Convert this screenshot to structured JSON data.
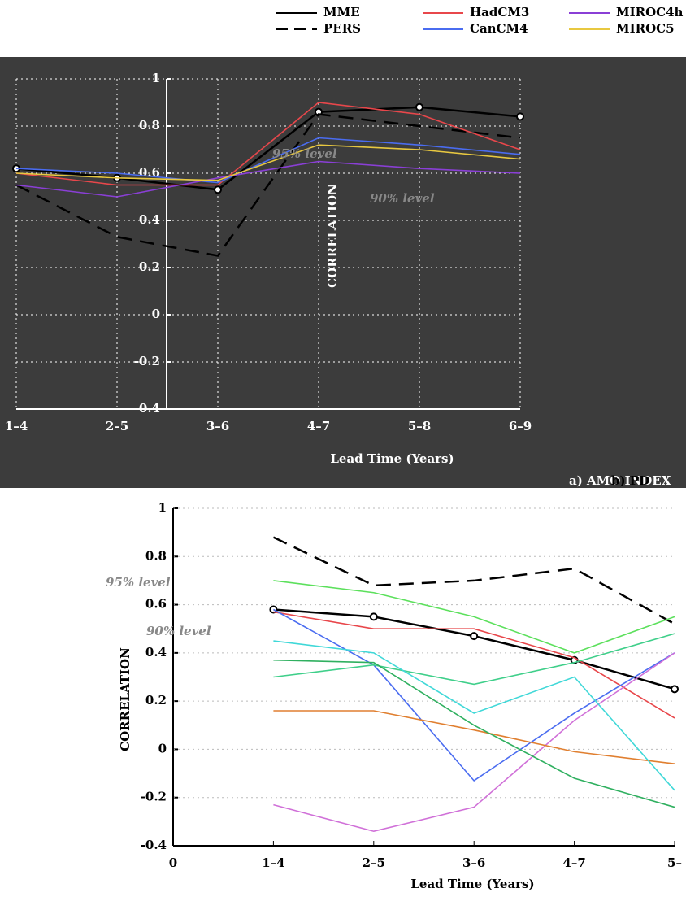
{
  "chart_data": [
    {
      "type": "line",
      "title": "a) AMO INDEX",
      "x_label": "Lead Time (Years)",
      "y_label": "CORRELATION",
      "annotations": [
        "95% level",
        "90% level"
      ],
      "categories": [
        "1–4",
        "2–5",
        "3–6",
        "4–7",
        "5–8",
        "6–9"
      ],
      "ylim": [
        -0.4,
        1
      ],
      "yticks": [
        -0.4,
        -0.2,
        0,
        0.2,
        0.4,
        0.6,
        0.8,
        1
      ],
      "grid": true,
      "series": [
        {
          "name": "MME",
          "color": "#000000",
          "markers": true,
          "values": [
            0.62,
            0.58,
            0.53,
            0.86,
            0.88,
            0.84
          ]
        },
        {
          "name": "PERS",
          "color": "#000000",
          "dash": true,
          "values": [
            0.55,
            0.33,
            0.25,
            0.85,
            0.8,
            0.75
          ]
        },
        {
          "name": "HadCM3",
          "color": "#e8474b",
          "values": [
            0.6,
            0.55,
            0.55,
            0.9,
            0.85,
            0.7
          ]
        },
        {
          "name": "CanCM4",
          "color": "#4a6cf0",
          "values": [
            0.62,
            0.6,
            0.56,
            0.75,
            0.72,
            0.68
          ]
        },
        {
          "name": "MIROC4h",
          "color": "#8a3fd6",
          "values": [
            0.55,
            0.5,
            0.58,
            0.65,
            0.62,
            0.6
          ]
        },
        {
          "name": "MIROC5",
          "color": "#e8c840",
          "values": [
            0.6,
            0.58,
            0.57,
            0.72,
            0.7,
            0.66
          ]
        }
      ]
    },
    {
      "type": "line",
      "title": "b) PD",
      "x_label": "Lead Time (Years)",
      "y_label": "CORRELATION",
      "annotations": [
        "95% level",
        "90% level"
      ],
      "x": [
        1,
        2,
        3,
        4,
        5
      ],
      "xlim": [
        0,
        5
      ],
      "xticks": [
        0,
        {
          "value": 1,
          "label": "1–4"
        },
        {
          "value": 2,
          "label": "2–5"
        },
        {
          "value": 3,
          "label": "3–6"
        },
        {
          "value": 4,
          "label": "4–7"
        },
        {
          "value": 5,
          "label": "5–"
        }
      ],
      "ylim": [
        -0.4,
        1
      ],
      "yticks": [
        -0.4,
        -0.2,
        0,
        0.2,
        0.4,
        0.6,
        0.8,
        1
      ],
      "grid": true,
      "series": [
        {
          "color": "#000000",
          "markers": true,
          "values": [
            0.58,
            0.55,
            0.47,
            0.37,
            0.25
          ]
        },
        {
          "color": "#000000",
          "dash": true,
          "values": [
            0.88,
            0.68,
            0.7,
            0.75,
            0.52
          ]
        },
        {
          "color": "#e8474b",
          "values": [
            0.57,
            0.5,
            0.5,
            0.38,
            0.13
          ]
        },
        {
          "color": "#4a6cf0",
          "values": [
            0.58,
            0.35,
            -0.13,
            0.15,
            0.4
          ]
        },
        {
          "color": "#d070d8",
          "values": [
            -0.23,
            -0.34,
            -0.24,
            0.12,
            0.4
          ]
        },
        {
          "color": "#e07f30",
          "values": [
            0.16,
            0.16,
            0.08,
            -0.01,
            -0.06
          ]
        },
        {
          "color": "#5ce05c",
          "values": [
            0.7,
            0.65,
            0.55,
            0.4,
            0.55
          ]
        },
        {
          "color": "#3fcf8a",
          "values": [
            0.3,
            0.35,
            0.27,
            0.36,
            0.48
          ]
        },
        {
          "color": "#40d8d8",
          "values": [
            0.45,
            0.4,
            0.15,
            0.3,
            -0.17
          ]
        },
        {
          "color": "#30b060",
          "values": [
            0.37,
            0.36,
            0.1,
            -0.12,
            -0.24
          ]
        }
      ]
    }
  ]
}
